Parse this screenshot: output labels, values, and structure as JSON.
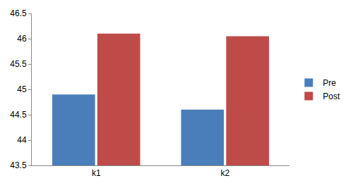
{
  "chart_data": {
    "type": "bar",
    "categories": [
      "k1",
      "k2"
    ],
    "series": [
      {
        "name": "Pre",
        "color": "#4a7ebb",
        "values": [
          44.9,
          44.6
        ]
      },
      {
        "name": "Post",
        "color": "#be4b48",
        "values": [
          46.1,
          46.05
        ]
      }
    ],
    "ylim": [
      43.5,
      46.5
    ],
    "yticks": [
      43.5,
      44,
      44.5,
      45,
      45.5,
      46,
      46.5
    ],
    "grid": false,
    "legend": "right"
  }
}
